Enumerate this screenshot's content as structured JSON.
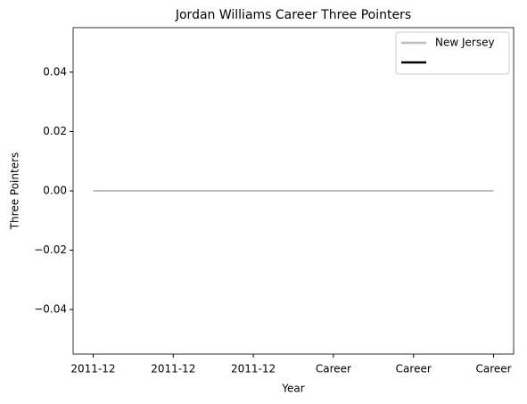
{
  "chart_data": {
    "type": "line",
    "title": "Jordan Williams  Career Three Pointers",
    "xlabel": "Year",
    "ylabel": "Three Pointers",
    "categories": [
      "2011-12",
      "2011-12",
      "2011-12",
      "Career",
      "Career",
      "Career"
    ],
    "series": [
      {
        "name": "New Jersey",
        "color": "#bfbfbf",
        "values": [
          0,
          0,
          0,
          0,
          0,
          0
        ]
      },
      {
        "color": "#000000",
        "values": [
          null,
          null,
          null,
          null,
          null,
          null
        ]
      }
    ],
    "ylim": [
      -0.055,
      0.055
    ],
    "yticks": [
      {
        "value": -0.04,
        "label": "−0.04"
      },
      {
        "value": -0.02,
        "label": "−0.02"
      },
      {
        "value": 0,
        "label": "0.00"
      },
      0.02,
      0.04
    ],
    "grid": false,
    "legend": "upper right"
  }
}
